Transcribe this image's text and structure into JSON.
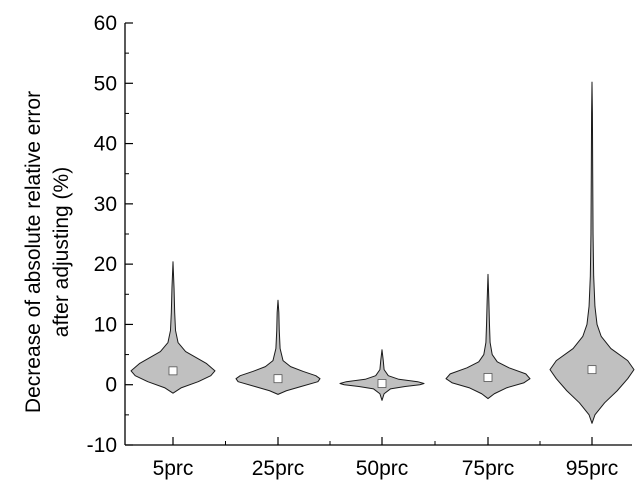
{
  "chart_data": {
    "type": "violin",
    "title": "",
    "xlabel": "",
    "ylabel": [
      "Decrease of absolute relative error",
      "after adjusting (%)"
    ],
    "ylim": [
      -10,
      60
    ],
    "yticks": [
      -10,
      0,
      10,
      20,
      30,
      40,
      50,
      60
    ],
    "ytick_labels": [
      "-10",
      "0",
      "10",
      "20",
      "30",
      "40",
      "50",
      "60"
    ],
    "categories": [
      "5prc",
      "25prc",
      "50prc",
      "75prc",
      "95prc"
    ],
    "series": [
      {
        "category": "5prc",
        "mean": 2.3,
        "min": -1.4,
        "max": 20.4,
        "profile": [
          [
            -1.4,
            0.0
          ],
          [
            -0.5,
            0.2
          ],
          [
            0.5,
            0.6
          ],
          [
            1.5,
            0.9
          ],
          [
            2.3,
            1.0
          ],
          [
            3.5,
            0.8
          ],
          [
            4.5,
            0.55
          ],
          [
            5.5,
            0.3
          ],
          [
            7,
            0.12
          ],
          [
            9,
            0.06
          ],
          [
            12,
            0.04
          ],
          [
            16,
            0.025
          ],
          [
            20.4,
            0.0
          ]
        ]
      },
      {
        "category": "25prc",
        "mean": 1.0,
        "min": -1.6,
        "max": 14.0,
        "profile": [
          [
            -1.6,
            0.0
          ],
          [
            -1,
            0.2
          ],
          [
            -0.3,
            0.55
          ],
          [
            0.5,
            0.95
          ],
          [
            1.0,
            1.0
          ],
          [
            1.5,
            0.9
          ],
          [
            2.2,
            0.6
          ],
          [
            3,
            0.3
          ],
          [
            4,
            0.12
          ],
          [
            6,
            0.05
          ],
          [
            9,
            0.03
          ],
          [
            12,
            0.02
          ],
          [
            14,
            0.0
          ]
        ]
      },
      {
        "category": "50prc",
        "mean": 0.2,
        "min": -2.6,
        "max": 5.8,
        "profile": [
          [
            -2.6,
            0.0
          ],
          [
            -1.5,
            0.05
          ],
          [
            -0.7,
            0.2
          ],
          [
            -0.3,
            0.55
          ],
          [
            0,
            0.9
          ],
          [
            0.2,
            1.0
          ],
          [
            0.5,
            0.85
          ],
          [
            0.9,
            0.4
          ],
          [
            1.5,
            0.15
          ],
          [
            2.5,
            0.05
          ],
          [
            4,
            0.03
          ],
          [
            5.8,
            0.0
          ]
        ]
      },
      {
        "category": "75prc",
        "mean": 1.2,
        "min": -2.3,
        "max": 18.3,
        "profile": [
          [
            -2.3,
            0.0
          ],
          [
            -1.5,
            0.15
          ],
          [
            -0.5,
            0.45
          ],
          [
            0.3,
            0.85
          ],
          [
            1.0,
            1.0
          ],
          [
            1.8,
            0.9
          ],
          [
            2.8,
            0.5
          ],
          [
            3.8,
            0.22
          ],
          [
            5,
            0.1
          ],
          [
            7,
            0.05
          ],
          [
            10,
            0.035
          ],
          [
            14,
            0.02
          ],
          [
            18.3,
            0.0
          ]
        ]
      },
      {
        "category": "95prc",
        "mean": 2.5,
        "min": -6.4,
        "max": 50.2,
        "profile": [
          [
            -6.4,
            0.0
          ],
          [
            -5,
            0.07
          ],
          [
            -3,
            0.3
          ],
          [
            -1,
            0.6
          ],
          [
            1,
            0.85
          ],
          [
            2.5,
            1.0
          ],
          [
            4,
            0.85
          ],
          [
            6,
            0.45
          ],
          [
            8,
            0.22
          ],
          [
            10,
            0.12
          ],
          [
            13,
            0.07
          ],
          [
            18,
            0.04
          ],
          [
            25,
            0.025
          ],
          [
            35,
            0.017
          ],
          [
            45,
            0.01
          ],
          [
            50.2,
            0.0
          ]
        ]
      }
    ],
    "colors": {
      "fill": "#c0c0c0",
      "stroke": "#1a1a1a",
      "mean_marker": "#ffffff"
    },
    "grid": false,
    "legend": "none"
  }
}
